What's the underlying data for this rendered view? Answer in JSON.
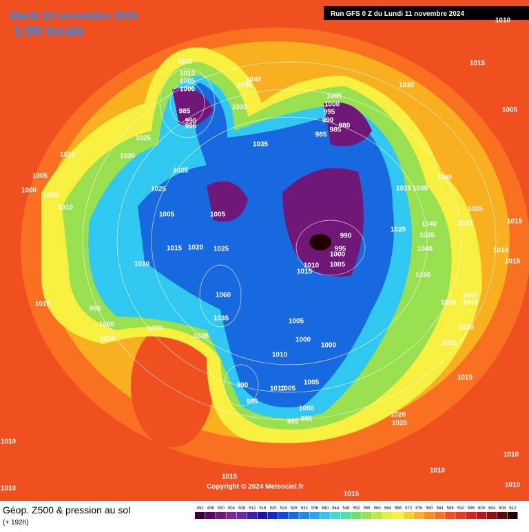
{
  "header": {
    "date": "Mardi 19 novembre 2024",
    "time": "1:00 locale",
    "run": "Run GFS 0 Z du Lundi 11 novembre 2024"
  },
  "copyright": "Copyright © 2024 Meteociel.fr",
  "footer": {
    "title": "Géop. Z500 & pression au sol",
    "subtitle": "(+ 192h)"
  },
  "legend": {
    "values": [
      492,
      496,
      500,
      504,
      508,
      512,
      516,
      520,
      524,
      528,
      532,
      536,
      540,
      544,
      548,
      552,
      556,
      560,
      564,
      568,
      572,
      576,
      580,
      584,
      588,
      592,
      596,
      600,
      604,
      608,
      612
    ],
    "colors": [
      "#3c0040",
      "#5a0a5e",
      "#701878",
      "#7a2a90",
      "#6a2aa0",
      "#4020a8",
      "#2010b0",
      "#1028c8",
      "#1448d8",
      "#1868e0",
      "#2088e8",
      "#28a8f0",
      "#30c8f0",
      "#40d8d0",
      "#50e0a0",
      "#70e070",
      "#98e050",
      "#c0e840",
      "#e0f040",
      "#f8f040",
      "#f8d030",
      "#f8b020",
      "#f89020",
      "#f87020",
      "#f05020",
      "#e83820",
      "#d82020",
      "#b81818",
      "#901010",
      "#600808",
      "#200000"
    ]
  },
  "isobar_labels": [
    "1015",
    "1010",
    "1005",
    "1000",
    "985",
    "990",
    "995",
    "1040",
    "1035",
    "1030",
    "1025",
    "1010",
    "1030",
    "1025",
    "1005",
    "1000",
    "1000",
    "1010",
    "1025",
    "1005",
    "1005",
    "1015",
    "1020",
    "1025",
    "1010",
    "1015",
    "995",
    "1000",
    "1005",
    "1010",
    "1060",
    "1035",
    "1035",
    "1005",
    "1000",
    "995",
    "990",
    "985",
    "980",
    "985",
    "1035",
    "1030",
    "1015",
    "1010",
    "1005",
    "1030",
    "1025",
    "1035",
    "1025",
    "1030",
    "1040",
    "1035",
    "1020",
    "1040",
    "990",
    "995",
    "1000",
    "1005",
    "1010",
    "1015",
    "1030",
    "1015",
    "1010",
    "1015",
    "1025",
    "1045",
    "1040",
    "1020",
    "1015",
    "1015",
    "1005",
    "1000",
    "1000",
    "1010",
    "990",
    "995",
    "1005",
    "1010",
    "1005",
    "1000",
    "995",
    "995",
    "1020",
    "1020",
    "1010",
    "1010",
    "1010",
    "1010",
    "1015",
    "1015",
    "1010"
  ]
}
